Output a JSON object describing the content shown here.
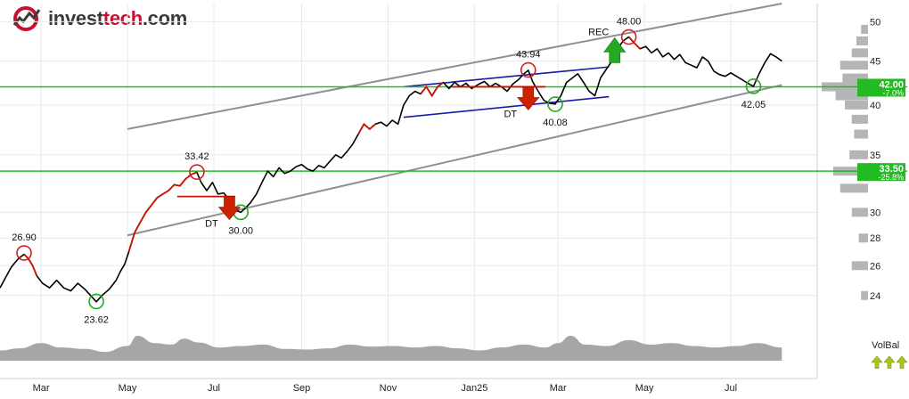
{
  "logo": {
    "prefix": "invest",
    "accent": "tech",
    "suffix": ".com"
  },
  "colors": {
    "price_line": "#000000",
    "price_highlight": "#cc1100",
    "trend_channel": "#909090",
    "rect_channel": "#1a1aa8",
    "support_line": "#22bb22",
    "circle_top": "#d02020",
    "circle_bottom": "#22aa22",
    "arrow_down": "#cc2200",
    "arrow_up": "#22aa22",
    "volume_fill": "#a6a6a6",
    "grid": "#e9e9e9",
    "volbal_arrow": "#a5c81e"
  },
  "chart_data": {
    "type": "line",
    "y_axis": {
      "scale": "log",
      "range": [
        23.2,
        52.5
      ],
      "ticks": [
        24,
        26,
        28,
        30,
        35,
        40,
        45,
        50
      ],
      "position": "right"
    },
    "x_axis": {
      "range": [
        "2024-02-01",
        "2025-08-31"
      ],
      "ticks": [
        {
          "label": "Mar",
          "date": "2024-03-01"
        },
        {
          "label": "May",
          "date": "2024-05-01"
        },
        {
          "label": "Jul",
          "date": "2024-07-01"
        },
        {
          "label": "Sep",
          "date": "2024-09-01"
        },
        {
          "label": "Nov",
          "date": "2024-11-01"
        },
        {
          "label": "Jan25",
          "date": "2025-01-01"
        },
        {
          "label": "Mar",
          "date": "2025-03-01"
        },
        {
          "label": "May",
          "date": "2025-05-01"
        },
        {
          "label": "Jul",
          "date": "2025-07-01"
        }
      ]
    },
    "grid": true,
    "price": [
      [
        "2024-02-01",
        24.5
      ],
      [
        "2024-02-05",
        25.2
      ],
      [
        "2024-02-09",
        25.9
      ],
      [
        "2024-02-14",
        26.5
      ],
      [
        "2024-02-18",
        26.8
      ],
      [
        "2024-02-21",
        26.5
      ],
      [
        "2024-02-24",
        26.0
      ],
      [
        "2024-02-27",
        25.3
      ],
      [
        "2024-03-02",
        24.8
      ],
      [
        "2024-03-07",
        24.5
      ],
      [
        "2024-03-12",
        25.0
      ],
      [
        "2024-03-17",
        24.5
      ],
      [
        "2024-03-22",
        24.3
      ],
      [
        "2024-03-27",
        24.8
      ],
      [
        "2024-04-01",
        24.4
      ],
      [
        "2024-04-06",
        23.9
      ],
      [
        "2024-04-09",
        23.6
      ],
      [
        "2024-04-13",
        24.0
      ],
      [
        "2024-04-18",
        24.4
      ],
      [
        "2024-04-23",
        25.0
      ],
      [
        "2024-04-26",
        25.6
      ],
      [
        "2024-04-29",
        26.1
      ],
      [
        "2024-05-02",
        27.0
      ],
      [
        "2024-05-06",
        28.4
      ],
      [
        "2024-05-10",
        29.2
      ],
      [
        "2024-05-14",
        30.0
      ],
      [
        "2024-05-18",
        30.6
      ],
      [
        "2024-05-22",
        31.2
      ],
      [
        "2024-05-26",
        31.5
      ],
      [
        "2024-05-30",
        31.8
      ],
      [
        "2024-06-03",
        32.3
      ],
      [
        "2024-06-07",
        32.2
      ],
      [
        "2024-06-11",
        32.8
      ],
      [
        "2024-06-15",
        33.2
      ],
      [
        "2024-06-19",
        33.4
      ],
      [
        "2024-06-22",
        32.5
      ],
      [
        "2024-06-26",
        31.8
      ],
      [
        "2024-06-30",
        32.5
      ],
      [
        "2024-07-04",
        31.5
      ],
      [
        "2024-07-08",
        31.6
      ],
      [
        "2024-07-12",
        31.0
      ],
      [
        "2024-07-16",
        30.2
      ],
      [
        "2024-07-20",
        30.0
      ],
      [
        "2024-07-23",
        30.3
      ],
      [
        "2024-07-27",
        30.8
      ],
      [
        "2024-07-31",
        31.5
      ],
      [
        "2024-08-04",
        32.5
      ],
      [
        "2024-08-08",
        33.5
      ],
      [
        "2024-08-12",
        33.0
      ],
      [
        "2024-08-16",
        33.8
      ],
      [
        "2024-08-20",
        33.3
      ],
      [
        "2024-08-24",
        33.5
      ],
      [
        "2024-08-28",
        33.9
      ],
      [
        "2024-09-01",
        34.1
      ],
      [
        "2024-09-05",
        33.7
      ],
      [
        "2024-09-09",
        33.5
      ],
      [
        "2024-09-13",
        34.0
      ],
      [
        "2024-09-17",
        33.8
      ],
      [
        "2024-09-21",
        34.4
      ],
      [
        "2024-09-25",
        35.0
      ],
      [
        "2024-09-29",
        34.7
      ],
      [
        "2024-10-03",
        35.3
      ],
      [
        "2024-10-07",
        36.0
      ],
      [
        "2024-10-11",
        37.0
      ],
      [
        "2024-10-15",
        38.0
      ],
      [
        "2024-10-19",
        37.5
      ],
      [
        "2024-10-23",
        38.0
      ],
      [
        "2024-10-27",
        38.2
      ],
      [
        "2024-10-31",
        37.8
      ],
      [
        "2024-11-04",
        38.4
      ],
      [
        "2024-11-08",
        38.0
      ],
      [
        "2024-11-12",
        40.0
      ],
      [
        "2024-11-16",
        41.0
      ],
      [
        "2024-11-20",
        41.5
      ],
      [
        "2024-11-24",
        41.2
      ],
      [
        "2024-11-28",
        42.0
      ],
      [
        "2024-12-02",
        41.0
      ],
      [
        "2024-12-06",
        42.0
      ],
      [
        "2024-12-10",
        42.5
      ],
      [
        "2024-12-14",
        41.8
      ],
      [
        "2024-12-18",
        42.5
      ],
      [
        "2024-12-22",
        42.0
      ],
      [
        "2024-12-26",
        42.4
      ],
      [
        "2024-12-30",
        41.8
      ],
      [
        "2025-01-04",
        42.3
      ],
      [
        "2025-01-08",
        42.6
      ],
      [
        "2025-01-12",
        42.0
      ],
      [
        "2025-01-16",
        42.4
      ],
      [
        "2025-01-20",
        42.0
      ],
      [
        "2025-01-24",
        41.5
      ],
      [
        "2025-01-28",
        42.3
      ],
      [
        "2025-02-01",
        42.8
      ],
      [
        "2025-02-05",
        43.5
      ],
      [
        "2025-02-08",
        43.9
      ],
      [
        "2025-02-11",
        42.6
      ],
      [
        "2025-02-15",
        41.5
      ],
      [
        "2025-02-19",
        40.5
      ],
      [
        "2025-02-23",
        40.2
      ],
      [
        "2025-02-27",
        40.1
      ],
      [
        "2025-03-03",
        41.0
      ],
      [
        "2025-03-07",
        42.5
      ],
      [
        "2025-03-11",
        43.0
      ],
      [
        "2025-03-15",
        43.5
      ],
      [
        "2025-03-19",
        42.5
      ],
      [
        "2025-03-23",
        41.5
      ],
      [
        "2025-03-27",
        41.0
      ],
      [
        "2025-03-31",
        43.0
      ],
      [
        "2025-04-04",
        44.0
      ],
      [
        "2025-04-08",
        45.0
      ],
      [
        "2025-04-12",
        46.5
      ],
      [
        "2025-04-16",
        47.5
      ],
      [
        "2025-04-20",
        48.0
      ],
      [
        "2025-04-24",
        47.2
      ],
      [
        "2025-04-28",
        46.5
      ],
      [
        "2025-05-02",
        46.8
      ],
      [
        "2025-05-06",
        46.0
      ],
      [
        "2025-05-10",
        46.5
      ],
      [
        "2025-05-14",
        45.5
      ],
      [
        "2025-05-18",
        46.0
      ],
      [
        "2025-05-22",
        45.2
      ],
      [
        "2025-05-26",
        45.8
      ],
      [
        "2025-05-30",
        44.8
      ],
      [
        "2025-06-03",
        44.5
      ],
      [
        "2025-06-07",
        44.2
      ],
      [
        "2025-06-11",
        45.5
      ],
      [
        "2025-06-15",
        45.0
      ],
      [
        "2025-06-19",
        43.8
      ],
      [
        "2025-06-23",
        43.4
      ],
      [
        "2025-06-27",
        43.2
      ],
      [
        "2025-07-01",
        43.6
      ],
      [
        "2025-07-05",
        43.2
      ],
      [
        "2025-07-09",
        42.8
      ],
      [
        "2025-07-13",
        42.4
      ],
      [
        "2025-07-17",
        42.05
      ],
      [
        "2025-07-21",
        43.5
      ],
      [
        "2025-07-25",
        44.8
      ],
      [
        "2025-07-29",
        45.9
      ],
      [
        "2025-08-02",
        45.5
      ],
      [
        "2025-08-06",
        45.0
      ]
    ],
    "highlight_segments": [
      [
        "2024-02-18",
        "2024-02-27"
      ],
      [
        "2024-05-02",
        "2024-06-19"
      ],
      [
        "2024-10-11",
        "2024-10-23"
      ],
      [
        "2024-11-24",
        "2024-12-10"
      ],
      [
        "2025-04-20",
        "2025-04-28"
      ]
    ],
    "trend_channel": {
      "upper": [
        [
          "2024-05-01",
          37.5
        ],
        [
          "2025-08-06",
          52.5
        ]
      ],
      "lower": [
        [
          "2024-05-01",
          28.2
        ],
        [
          "2025-08-06",
          42.2
        ]
      ]
    },
    "rect_channel": {
      "upper": [
        [
          "2024-11-12",
          42.0
        ],
        [
          "2025-04-06",
          44.3
        ]
      ],
      "lower": [
        [
          "2024-11-12",
          38.7
        ],
        [
          "2025-04-06",
          40.9
        ]
      ]
    },
    "horizontal_lines": [
      {
        "value": 42.0,
        "label": "42.00",
        "change": "-7.0%"
      },
      {
        "value": 33.5,
        "label": "33.50",
        "change": "-25.8%"
      }
    ],
    "marked_tops": [
      {
        "date": "2024-02-18",
        "value": 26.9,
        "label": "26.90"
      },
      {
        "date": "2024-06-19",
        "value": 33.42,
        "label": "33.42"
      },
      {
        "date": "2025-02-08",
        "value": 43.94,
        "label": "43.94"
      },
      {
        "date": "2025-04-20",
        "value": 48.0,
        "label": "48.00"
      }
    ],
    "marked_bottoms": [
      {
        "date": "2024-04-09",
        "value": 23.62,
        "label": "23.62"
      },
      {
        "date": "2024-07-20",
        "value": 30.0,
        "label": "30.00"
      },
      {
        "date": "2025-02-27",
        "value": 40.08,
        "label": "40.08"
      },
      {
        "date": "2025-07-17",
        "value": 42.05,
        "label": "42.05"
      }
    ],
    "signals": [
      {
        "type": "sell",
        "label": "DT",
        "date": "2024-07-12"
      },
      {
        "type": "sell",
        "label": "DT",
        "date": "2025-02-08"
      },
      {
        "type": "buy",
        "label": "REC",
        "date": "2025-04-10"
      }
    ],
    "volume": [
      [
        "2024-02-01",
        0.35
      ],
      [
        "2024-02-15",
        0.42
      ],
      [
        "2024-03-01",
        0.6
      ],
      [
        "2024-03-15",
        0.45
      ],
      [
        "2024-04-01",
        0.4
      ],
      [
        "2024-04-15",
        0.3
      ],
      [
        "2024-05-01",
        0.5
      ],
      [
        "2024-05-08",
        0.85
      ],
      [
        "2024-05-20",
        0.6
      ],
      [
        "2024-06-01",
        0.55
      ],
      [
        "2024-06-10",
        0.75
      ],
      [
        "2024-06-20",
        0.62
      ],
      [
        "2024-07-05",
        0.45
      ],
      [
        "2024-07-20",
        0.5
      ],
      [
        "2024-08-05",
        0.55
      ],
      [
        "2024-08-20",
        0.4
      ],
      [
        "2024-09-05",
        0.38
      ],
      [
        "2024-09-20",
        0.42
      ],
      [
        "2024-10-05",
        0.55
      ],
      [
        "2024-10-20",
        0.48
      ],
      [
        "2024-11-05",
        0.5
      ],
      [
        "2024-11-20",
        0.45
      ],
      [
        "2024-12-05",
        0.5
      ],
      [
        "2024-12-20",
        0.42
      ],
      [
        "2025-01-05",
        0.35
      ],
      [
        "2025-01-20",
        0.45
      ],
      [
        "2025-02-05",
        0.55
      ],
      [
        "2025-02-20",
        0.45
      ],
      [
        "2025-03-01",
        0.6
      ],
      [
        "2025-03-10",
        0.85
      ],
      [
        "2025-03-20",
        0.55
      ],
      [
        "2025-04-05",
        0.5
      ],
      [
        "2025-04-20",
        0.7
      ],
      [
        "2025-05-05",
        0.55
      ],
      [
        "2025-05-20",
        0.6
      ],
      [
        "2025-06-05",
        0.5
      ],
      [
        "2025-06-20",
        0.45
      ],
      [
        "2025-07-05",
        0.5
      ],
      [
        "2025-07-20",
        0.6
      ],
      [
        "2025-08-06",
        0.45
      ]
    ],
    "volume_profile": [
      [
        24,
        0.15
      ],
      [
        26,
        0.35
      ],
      [
        28,
        0.2
      ],
      [
        30,
        0.35
      ],
      [
        32,
        0.6
      ],
      [
        33.5,
        0.75
      ],
      [
        35,
        0.4
      ],
      [
        37,
        0.3
      ],
      [
        38.5,
        0.35
      ],
      [
        40,
        0.5
      ],
      [
        41,
        0.7
      ],
      [
        42,
        1.0
      ],
      [
        43,
        0.55
      ],
      [
        44.5,
        0.6
      ],
      [
        46,
        0.35
      ],
      [
        47.5,
        0.25
      ],
      [
        49,
        0.15
      ]
    ],
    "indicator": {
      "label": "VolBal"
    }
  }
}
